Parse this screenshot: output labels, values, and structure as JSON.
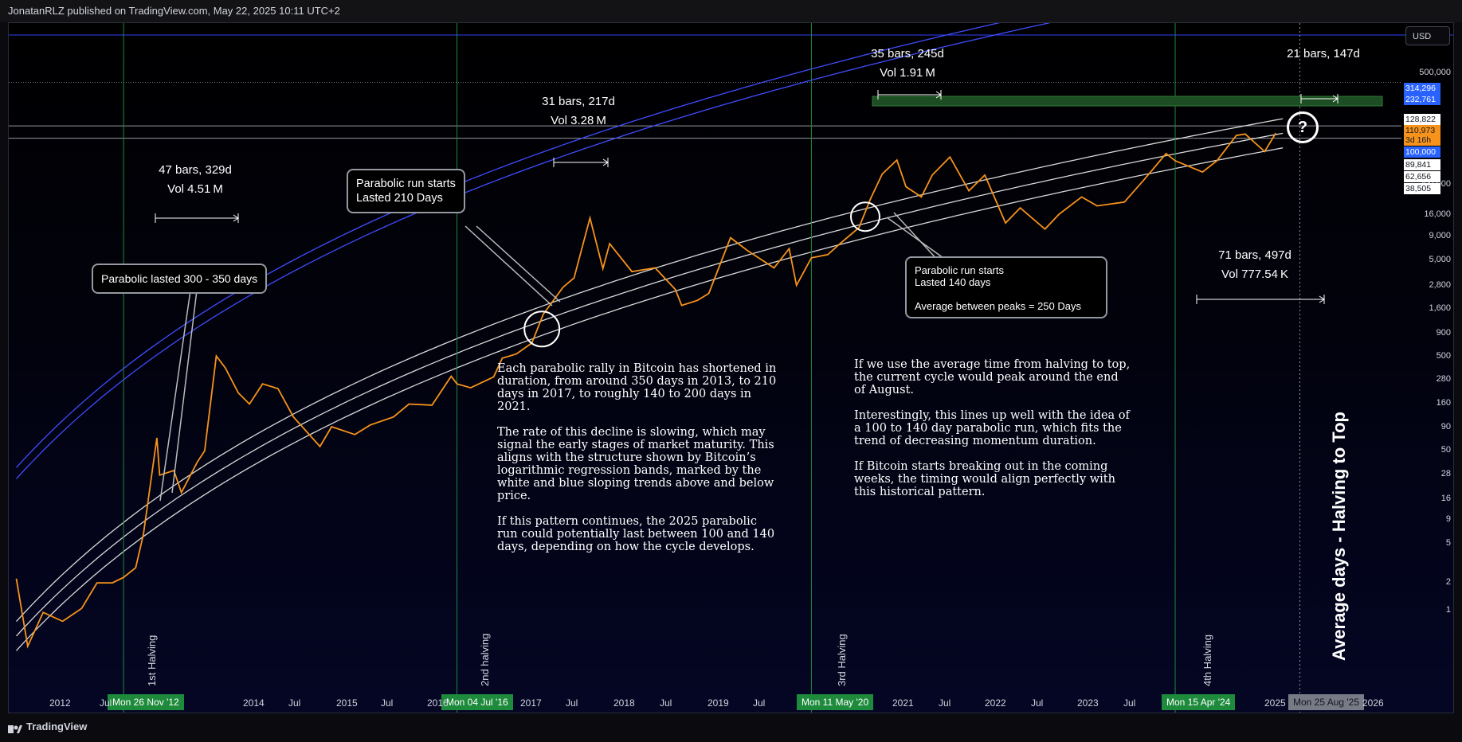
{
  "header": {
    "published_by": "JonatanRLZ published on TradingView.com, May 22, 2025 10:11 UTC+2"
  },
  "footer": {
    "brand": "TradingView"
  },
  "currency_button": "USD",
  "colors": {
    "price": "#f7931a",
    "blue_band": "#2f3fff",
    "white_band": "#d9d9d9",
    "halving_line": "#1e8a3c",
    "badge": "#1e8a3c"
  },
  "chart_data": {
    "type": "line",
    "y_scale": "log",
    "ylim": [
      1,
      900000
    ],
    "xlim": [
      "2011-09-01",
      "2026-10-01"
    ],
    "series": [
      {
        "values": [
          [
            "2011-10-01",
            12
          ],
          [
            "2011-11-15",
            3
          ],
          [
            "2012-01-15",
            6
          ],
          [
            "2012-04-01",
            5
          ],
          [
            "2012-06-15",
            6.5
          ],
          [
            "2012-08-15",
            11
          ],
          [
            "2012-10-15",
            11
          ],
          [
            "2012-11-28",
            12.3
          ],
          [
            "2013-01-15",
            15
          ],
          [
            "2013-02-15",
            30
          ],
          [
            "2013-04-09",
            215
          ],
          [
            "2013-04-20",
            100
          ],
          [
            "2013-06-15",
            110
          ],
          [
            "2013-07-15",
            70
          ],
          [
            "2013-09-15",
            130
          ],
          [
            "2013-10-15",
            165
          ],
          [
            "2013-11-30",
            1150
          ],
          [
            "2014-01-05",
            900
          ],
          [
            "2014-02-25",
            540
          ],
          [
            "2014-04-10",
            430
          ],
          [
            "2014-06-01",
            650
          ],
          [
            "2014-08-01",
            590
          ],
          [
            "2014-10-01",
            330
          ],
          [
            "2015-01-14",
            180
          ],
          [
            "2015-03-01",
            270
          ],
          [
            "2015-06-01",
            230
          ],
          [
            "2015-08-01",
            280
          ],
          [
            "2015-11-01",
            330
          ],
          [
            "2016-01-01",
            430
          ],
          [
            "2016-04-01",
            420
          ],
          [
            "2016-06-16",
            760
          ],
          [
            "2016-07-09",
            650
          ],
          [
            "2016-09-01",
            600
          ],
          [
            "2016-12-01",
            750
          ],
          [
            "2017-01-04",
            1100
          ],
          [
            "2017-03-01",
            1200
          ],
          [
            "2017-05-01",
            1500
          ],
          [
            "2017-06-15",
            2700
          ],
          [
            "2017-09-01",
            4700
          ],
          [
            "2017-10-15",
            5700
          ],
          [
            "2017-12-17",
            19500
          ],
          [
            "2018-02-06",
            6900
          ],
          [
            "2018-03-05",
            11500
          ],
          [
            "2018-06-01",
            6500
          ],
          [
            "2018-09-01",
            7000
          ],
          [
            "2018-11-20",
            4500
          ],
          [
            "2018-12-15",
            3250
          ],
          [
            "2019-02-15",
            3600
          ],
          [
            "2019-04-01",
            4150
          ],
          [
            "2019-06-26",
            13000
          ],
          [
            "2019-09-01",
            10000
          ],
          [
            "2019-12-15",
            7000
          ],
          [
            "2020-02-13",
            10400
          ],
          [
            "2020-03-13",
            4900
          ],
          [
            "2020-05-11",
            8600
          ],
          [
            "2020-07-15",
            9200
          ],
          [
            "2020-09-01",
            11500
          ],
          [
            "2020-11-15",
            16000
          ],
          [
            "2020-12-31",
            29000
          ],
          [
            "2021-02-15",
            48000
          ],
          [
            "2021-04-14",
            64000
          ],
          [
            "2021-05-20",
            37000
          ],
          [
            "2021-07-20",
            30000
          ],
          [
            "2021-09-01",
            47000
          ],
          [
            "2021-11-10",
            68000
          ],
          [
            "2022-01-24",
            34000
          ],
          [
            "2022-03-28",
            47000
          ],
          [
            "2022-06-18",
            17600
          ],
          [
            "2022-08-15",
            24000
          ],
          [
            "2022-11-21",
            15500
          ],
          [
            "2023-01-15",
            21000
          ],
          [
            "2023-04-15",
            30000
          ],
          [
            "2023-06-15",
            25000
          ],
          [
            "2023-10-01",
            27000
          ],
          [
            "2023-12-15",
            42000
          ],
          [
            "2024-03-14",
            73000
          ],
          [
            "2024-04-19",
            63000
          ],
          [
            "2024-08-05",
            50000
          ],
          [
            "2024-10-01",
            63000
          ],
          [
            "2024-12-17",
            106000
          ],
          [
            "2025-01-21",
            109000
          ],
          [
            "2025-04-08",
            76000
          ],
          [
            "2025-05-22",
            111000
          ]
        ]
      }
    ],
    "y_ticks": [
      "500,000",
      "200,000",
      "16,000",
      "9,000",
      "5,000",
      "2,800",
      "1,600",
      "900",
      "500",
      "280",
      "160",
      "90",
      "50",
      "28",
      "16",
      "9",
      "5",
      "2",
      "1"
    ],
    "price_tags": [
      {
        "label": "314,296",
        "bg": "#2962ff",
        "fg": "#ffffff"
      },
      {
        "label": "232,761",
        "bg": "#2962ff",
        "fg": "#ffffff"
      },
      {
        "label": "128,822",
        "bg": "#ffffff",
        "fg": "#131722"
      },
      {
        "label": "110,973",
        "bg": "#f7931a",
        "fg": "#131722"
      },
      {
        "label": "3d 16h",
        "bg": "#f7931a",
        "fg": "#131722"
      },
      {
        "label": "100,000",
        "bg": "#2962ff",
        "fg": "#ffffff"
      },
      {
        "label": "89,841",
        "bg": "#ffffff",
        "fg": "#131722"
      },
      {
        "label": "62,656",
        "bg": "#ffffff",
        "fg": "#131722"
      },
      {
        "label": "38,505",
        "bg": "#ffffff",
        "fg": "#131722"
      }
    ],
    "x_ticks": [
      "2012",
      "Jul",
      "2014",
      "Jul",
      "2015",
      "Jul",
      "2016",
      "2017",
      "Jul",
      "2018",
      "Jul",
      "2019",
      "Jul",
      "2021",
      "Jul",
      "2022",
      "Jul",
      "2023",
      "Jul",
      "2025",
      "2026"
    ],
    "halvings": [
      {
        "label": "1st Halving",
        "date": "Mon 26 Nov '12"
      },
      {
        "label": "2nd halving",
        "date": "Mon 04 Jul '16"
      },
      {
        "label": "3rd Halving",
        "date": "Mon 11 May '20"
      },
      {
        "label": "4th Halving",
        "date": "Mon 15 Apr '24"
      }
    ],
    "projection_date": "Mon 25 Aug '25",
    "projection_label": "Average days - Halving to Top",
    "horizontal_levels": [
      {
        "price": 314296
      },
      {
        "price": 128822
      },
      {
        "price": 100000
      }
    ],
    "measurements": [
      {
        "line1": "47 bars, 329d",
        "line2": "Vol 4.51 M"
      },
      {
        "line1": "31 bars, 217d",
        "line2": "Vol 3.28 M"
      },
      {
        "line1": "35 bars, 245d",
        "line2": "Vol 1.91 M"
      },
      {
        "line1": "21 bars, 147d",
        "line2": ""
      },
      {
        "line1": "71 bars, 497d",
        "line2": "Vol 777.54 K"
      }
    ],
    "callouts": [
      {
        "text": "Parabolic lasted 300 - 350 days"
      },
      {
        "text": "Parabolic run starts\nLasted 210 Days"
      },
      {
        "text": "Parabolic run starts\nLasted 140 days\n\nAverage between peaks = 250 Days"
      }
    ],
    "annotation_marker": "?",
    "notes_left": "Each parabolic rally in Bitcoin has shortened in\nduration, from around 350 days in 2013, to 210\ndays in 2017, to roughly 140 to 200 days in\n2021.\n\nThe rate of this decline is slowing, which may\nsignal the early stages of market maturity. This\naligns with the structure shown by Bitcoin’s\nlogarithmic regression bands, marked by the\nwhite and blue sloping trends above and below\nprice.\n\nIf this pattern continues, the 2025 parabolic\nrun could potentially last between 100 and 140\ndays, depending on how the cycle develops.",
    "notes_right": "If we use the average time from halving to top,\nthe current cycle would peak around the end\nof August.\n\nInterestingly, this lines up well with the idea of\na 100 to 140 day parabolic run, which fits the\ntrend of decreasing momentum duration.\n\nIf Bitcoin starts breaking out in the coming\nweeks, the timing would align perfectly with\nthis historical pattern."
  }
}
